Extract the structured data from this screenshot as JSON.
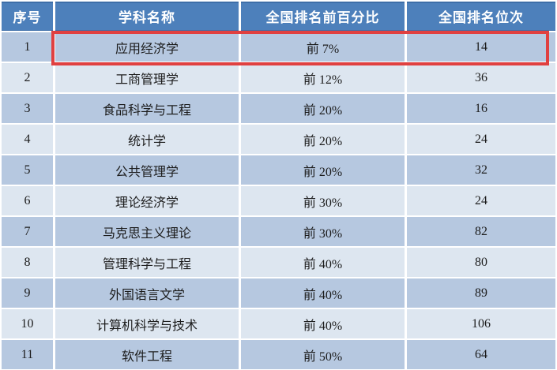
{
  "chart_data": {
    "type": "table",
    "title": "",
    "columns": [
      "序号",
      "学科名称",
      "全国排名前百分比",
      "全国排名位次"
    ],
    "rows": [
      {
        "seq": "1",
        "name": "应用经济学",
        "percent": "前 7%",
        "rank": "14"
      },
      {
        "seq": "2",
        "name": "工商管理学",
        "percent": "前 12%",
        "rank": "36"
      },
      {
        "seq": "3",
        "name": "食品科学与工程",
        "percent": "前 20%",
        "rank": "16"
      },
      {
        "seq": "4",
        "name": "统计学",
        "percent": "前 20%",
        "rank": "24"
      },
      {
        "seq": "5",
        "name": "公共管理学",
        "percent": "前 20%",
        "rank": "32"
      },
      {
        "seq": "6",
        "name": "理论经济学",
        "percent": "前 30%",
        "rank": "24"
      },
      {
        "seq": "7",
        "name": "马克思主义理论",
        "percent": "前 30%",
        "rank": "82"
      },
      {
        "seq": "8",
        "name": "管理科学与工程",
        "percent": "前 40%",
        "rank": "80"
      },
      {
        "seq": "9",
        "name": "外国语言文学",
        "percent": "前 40%",
        "rank": "89"
      },
      {
        "seq": "10",
        "name": "计算机科学与技术",
        "percent": "前 40%",
        "rank": "106"
      },
      {
        "seq": "11",
        "name": "软件工程",
        "percent": "前 50%",
        "rank": "64"
      }
    ],
    "highlighted_row": 1,
    "layout": {
      "banding": "odd rows light blue #b6c8e0, even rows pale blue #dde6f0",
      "header_bg": "#4d80bb",
      "highlight_border_color": "#e04040"
    }
  },
  "table": {
    "headers": {
      "seq": "序号",
      "name": "学科名称",
      "percent": "全国排名前百分比",
      "rank": "全国排名位次"
    },
    "rows": [
      {
        "seq": "1",
        "name": "应用经济学",
        "percent": "前 7%",
        "rank": "14"
      },
      {
        "seq": "2",
        "name": "工商管理学",
        "percent": "前 12%",
        "rank": "36"
      },
      {
        "seq": "3",
        "name": "食品科学与工程",
        "percent": "前 20%",
        "rank": "16"
      },
      {
        "seq": "4",
        "name": "统计学",
        "percent": "前 20%",
        "rank": "24"
      },
      {
        "seq": "5",
        "name": "公共管理学",
        "percent": "前 20%",
        "rank": "32"
      },
      {
        "seq": "6",
        "name": "理论经济学",
        "percent": "前 30%",
        "rank": "24"
      },
      {
        "seq": "7",
        "name": "马克思主义理论",
        "percent": "前 30%",
        "rank": "82"
      },
      {
        "seq": "8",
        "name": "管理科学与工程",
        "percent": "前 40%",
        "rank": "80"
      },
      {
        "seq": "9",
        "name": "外国语言文学",
        "percent": "前 40%",
        "rank": "89"
      },
      {
        "seq": "10",
        "name": "计算机科学与技术",
        "percent": "前 40%",
        "rank": "106"
      },
      {
        "seq": "11",
        "name": "软件工程",
        "percent": "前 50%",
        "rank": "64"
      }
    ]
  },
  "colors": {
    "header_bg": "#4d80bb",
    "header_edge": "#3d6ea8",
    "header_text": "#ffffff",
    "band_dark": "#b6c8e0",
    "band_light": "#dde6f0",
    "body_text": "#1c1c1c",
    "grid_line": "#ffffff",
    "highlight_border": "#e04040"
  }
}
